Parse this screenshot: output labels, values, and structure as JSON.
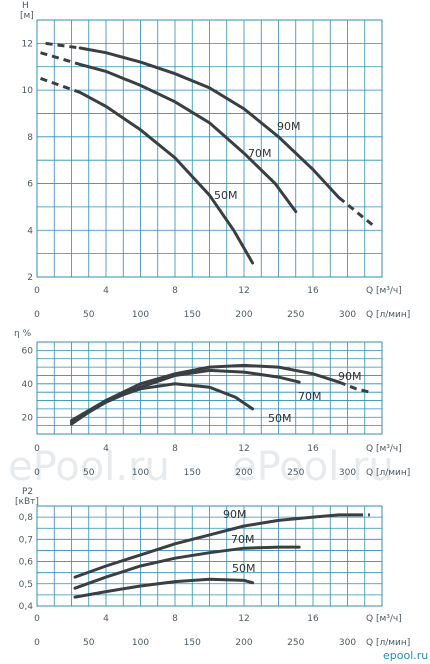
{
  "watermark": "ePool.ru",
  "corner_logo": "epool.ru",
  "chart_data": [
    {
      "type": "line",
      "ylabel": "H",
      "yunit": "[м]",
      "xlabel": "Q [м³/ч]",
      "x2label": "Q [л/мин]",
      "xlim": [
        0,
        20
      ],
      "ylim": [
        2,
        13
      ],
      "x_ticks": [
        0,
        4,
        8,
        12,
        16
      ],
      "x2_ticks": [
        0,
        50,
        100,
        150,
        200,
        250,
        300
      ],
      "y_ticks": [
        2,
        4,
        6,
        8,
        10,
        12
      ],
      "grid": true,
      "series": [
        {
          "name": "90M",
          "x": [
            0.5,
            2.5,
            4,
            6,
            8,
            10,
            12,
            14,
            16,
            17.5,
            18.5,
            19.5
          ],
          "y": [
            12.0,
            11.8,
            11.6,
            11.2,
            10.7,
            10.1,
            9.2,
            8.0,
            6.6,
            5.4,
            4.8,
            4.2
          ],
          "dashed_until": 2.5,
          "dashed_from": 17.5
        },
        {
          "name": "70M",
          "x": [
            0.2,
            2.5,
            4,
            6,
            8,
            10,
            12,
            13.8,
            15
          ],
          "y": [
            11.6,
            11.1,
            10.8,
            10.2,
            9.5,
            8.6,
            7.3,
            6.0,
            4.8
          ],
          "dashed_until": 2.5
        },
        {
          "name": "50M",
          "x": [
            0.2,
            2.5,
            4,
            6,
            8,
            10,
            11.4,
            12.5
          ],
          "y": [
            10.5,
            9.9,
            9.3,
            8.3,
            7.1,
            5.5,
            4.0,
            2.6
          ],
          "dashed_until": 2.5
        }
      ]
    },
    {
      "type": "line",
      "ylabel": "η %",
      "xlabel": "Q [м³/ч]",
      "x2label": "Q [л/мин]",
      "xlim": [
        0,
        20
      ],
      "ylim": [
        10,
        65
      ],
      "x_ticks": [
        0,
        4,
        8,
        12,
        16
      ],
      "x2_ticks": [
        0,
        50,
        100,
        150,
        200,
        250,
        300
      ],
      "y_ticks": [
        20,
        40,
        60
      ],
      "grid": true,
      "series": [
        {
          "name": "90M",
          "x": [
            2.0,
            4,
            6,
            8,
            10,
            12,
            14,
            16,
            17.5,
            18.5,
            19.3
          ],
          "y": [
            18,
            30,
            40,
            46,
            50,
            51,
            50,
            46,
            41,
            37,
            35
          ],
          "dashed_from": 17.5
        },
        {
          "name": "70M",
          "x": [
            2.0,
            4,
            6,
            8,
            10,
            12,
            14,
            15.2
          ],
          "y": [
            17,
            29,
            38,
            45,
            48,
            47,
            44,
            41
          ]
        },
        {
          "name": "50M",
          "x": [
            2.0,
            4,
            6,
            8,
            10,
            11.5,
            12.5
          ],
          "y": [
            16,
            30,
            37,
            40,
            38,
            32,
            25
          ]
        }
      ]
    },
    {
      "type": "line",
      "ylabel": "P2",
      "yunit": "[кВт]",
      "xlabel": "Q [м³/ч]",
      "x2label": "Q [л/мин]",
      "xlim": [
        0,
        20
      ],
      "ylim": [
        0.4,
        0.85
      ],
      "x_ticks": [
        0,
        4,
        8,
        12,
        16
      ],
      "x2_ticks": [
        0,
        50,
        100,
        150,
        200,
        250,
        300
      ],
      "y_ticks": [
        0.4,
        0.5,
        0.6,
        0.7,
        0.8
      ],
      "y_tick_labels": [
        "0,4",
        "0,5",
        "0,6",
        "0,7",
        "0,8"
      ],
      "grid": true,
      "series": [
        {
          "name": "90M",
          "x": [
            2.2,
            4,
            6,
            8,
            10,
            12,
            14,
            16,
            17.5,
            18.5,
            19.3
          ],
          "y": [
            0.53,
            0.58,
            0.63,
            0.68,
            0.72,
            0.76,
            0.785,
            0.8,
            0.81,
            0.81,
            0.81
          ],
          "dashed_from": 18.5
        },
        {
          "name": "70M",
          "x": [
            2.2,
            4,
            6,
            8,
            10,
            12,
            14,
            15.2
          ],
          "y": [
            0.48,
            0.53,
            0.58,
            0.615,
            0.64,
            0.66,
            0.665,
            0.665
          ]
        },
        {
          "name": "50M",
          "x": [
            2.2,
            4,
            6,
            8,
            10,
            12,
            12.5
          ],
          "y": [
            0.44,
            0.465,
            0.49,
            0.51,
            0.52,
            0.515,
            0.505
          ]
        }
      ]
    }
  ]
}
